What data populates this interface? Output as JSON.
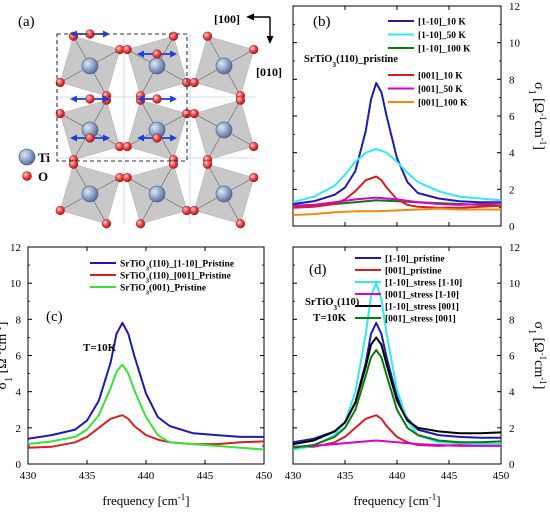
{
  "panel_a": {
    "label": "(a)",
    "dir_100": "[100]",
    "dir_010": "[010]",
    "legend_ti": "Ti",
    "legend_o": "O"
  },
  "xlabel": "frequency [cm",
  "xlabel_sup": "-1",
  "xlabel_close": "]",
  "ylabel_main": "σ",
  "ylabel_sub": "1",
  "ylabel_units": " [Ω",
  "ylabel_sup1": "-1",
  "ylabel_mid": "cm",
  "ylabel_sup2": "-1",
  "ylabel_close": "]",
  "chart_data": [
    {
      "id": "b",
      "type": "line",
      "panel_label": "(b)",
      "annotation": "SrTiO3(110)_pristine",
      "annotation_parts": [
        "SrTiO",
        "3",
        "(110)_pristine"
      ],
      "xlim": [
        430,
        450
      ],
      "ylim": [
        0,
        12
      ],
      "yticks": [
        0,
        2,
        4,
        6,
        8,
        10,
        12
      ],
      "xticks": [],
      "yaxis_side": "right",
      "legend_placement": "right",
      "legend_groups": [
        [
          0,
          1,
          2
        ],
        [
          3,
          4,
          5
        ]
      ],
      "series": [
        {
          "name": "[1-10]_10 K",
          "color": "#1c1ca8",
          "x": [
            430,
            432,
            434,
            435,
            436,
            437,
            437.5,
            438,
            438.5,
            439,
            440,
            441,
            442,
            444,
            446,
            448,
            450
          ],
          "y": [
            1.2,
            1.35,
            1.7,
            2.1,
            3.0,
            5.2,
            6.9,
            7.8,
            7.3,
            6.0,
            3.7,
            2.4,
            1.8,
            1.5,
            1.35,
            1.3,
            1.3
          ]
        },
        {
          "name": "[1-10]_50 K",
          "color": "#33e8ee",
          "x": [
            430,
            432,
            434,
            435,
            436,
            437,
            438,
            439,
            440,
            441,
            442,
            444,
            446,
            448,
            450
          ],
          "y": [
            1.3,
            1.6,
            2.2,
            2.8,
            3.5,
            4.0,
            4.2,
            4.0,
            3.5,
            2.9,
            2.4,
            1.9,
            1.6,
            1.5,
            1.4
          ]
        },
        {
          "name": "[1-10]_100 K",
          "color": "#0a7a0a",
          "x": [
            430,
            432,
            434,
            436,
            438,
            440,
            442,
            444,
            446,
            448,
            450
          ],
          "y": [
            1.1,
            1.15,
            1.2,
            1.3,
            1.4,
            1.35,
            1.3,
            1.25,
            1.2,
            1.15,
            1.1
          ]
        },
        {
          "name": "[001]_10 K",
          "color": "#d42020",
          "x": [
            430,
            432,
            434,
            435,
            436,
            437,
            438,
            438.5,
            439,
            440,
            441,
            442,
            444,
            446,
            448,
            450
          ],
          "y": [
            1.0,
            1.05,
            1.2,
            1.45,
            1.9,
            2.5,
            2.7,
            2.5,
            2.1,
            1.45,
            1.15,
            1.05,
            1.0,
            1.0,
            1.05,
            1.1
          ]
        },
        {
          "name": "[001]_50 K",
          "color": "#d400d4",
          "x": [
            430,
            432,
            434,
            436,
            438,
            440,
            442,
            444,
            446,
            448,
            450
          ],
          "y": [
            1.1,
            1.15,
            1.3,
            1.45,
            1.55,
            1.45,
            1.3,
            1.2,
            1.15,
            1.2,
            1.25
          ]
        },
        {
          "name": "[001]_100 K",
          "color": "#f08a10",
          "x": [
            430,
            432,
            434,
            436,
            438,
            440,
            442,
            444,
            446,
            448,
            450
          ],
          "y": [
            0.6,
            0.65,
            0.75,
            0.8,
            0.8,
            0.85,
            0.9,
            0.95,
            0.9,
            0.9,
            0.9
          ]
        }
      ]
    },
    {
      "id": "c",
      "type": "line",
      "panel_label": "(c)",
      "annotation": "T=10K",
      "annotation_parts": [
        "T=10K"
      ],
      "xlim": [
        430,
        450
      ],
      "ylim": [
        0,
        12
      ],
      "yticks": [
        0,
        2,
        4,
        6,
        8,
        10,
        12
      ],
      "xticks": [
        430,
        435,
        440,
        445,
        450
      ],
      "yaxis_side": "left",
      "legend_placement": "top",
      "legend_groups": [
        [
          0,
          1,
          2
        ]
      ],
      "series": [
        {
          "name": "SrTiO3(110)_[1-10]_Pristine",
          "name_parts": [
            "SrTiO",
            "3",
            "(110)_[1-10]_Pristine"
          ],
          "color": "#1c1ca8",
          "x": [
            430,
            432,
            434,
            435,
            436,
            437,
            437.5,
            438,
            438.5,
            439,
            440,
            441,
            442,
            444,
            446,
            448,
            450
          ],
          "y": [
            1.4,
            1.6,
            1.9,
            2.4,
            3.5,
            5.6,
            7.2,
            7.8,
            7.2,
            6.0,
            3.9,
            2.6,
            2.1,
            1.7,
            1.6,
            1.5,
            1.5
          ]
        },
        {
          "name": "SrTiO3(110)_[001]_Pristine",
          "name_parts": [
            "SrTiO",
            "3",
            "(110)_[001]_Pristine"
          ],
          "color": "#d42020",
          "x": [
            430,
            432,
            434,
            435,
            436,
            437,
            438,
            438.5,
            439,
            440,
            441,
            442,
            444,
            446,
            448,
            450
          ],
          "y": [
            0.9,
            0.95,
            1.2,
            1.5,
            2.0,
            2.5,
            2.7,
            2.5,
            2.1,
            1.6,
            1.35,
            1.2,
            1.1,
            1.1,
            1.2,
            1.25
          ]
        },
        {
          "name": "SrTiO3(001)_Pristine",
          "name_parts": [
            "SrTiO",
            "3",
            "(001)_Pristine"
          ],
          "color": "#3ce03c",
          "x": [
            430,
            432,
            434,
            435,
            436,
            437,
            437.5,
            438,
            438.5,
            439,
            440,
            441,
            442,
            444,
            446,
            448,
            450
          ],
          "y": [
            1.1,
            1.25,
            1.5,
            1.9,
            2.7,
            4.2,
            5.1,
            5.5,
            5.0,
            4.1,
            2.6,
            1.6,
            1.2,
            1.1,
            1.0,
            0.9,
            0.8
          ]
        }
      ]
    },
    {
      "id": "d",
      "type": "line",
      "panel_label": "(d)",
      "annotation": "SrTiO3(110) T=10K",
      "annotation_parts": [
        "SrTiO",
        "3",
        "(110)",
        "T=10K"
      ],
      "xlim": [
        430,
        450
      ],
      "ylim": [
        0,
        12
      ],
      "yticks": [
        0,
        2,
        4,
        6,
        8,
        10,
        12
      ],
      "xticks": [
        430,
        435,
        440,
        445,
        450
      ],
      "yaxis_side": "right",
      "legend_placement": "top",
      "legend_groups": [
        [
          0,
          1,
          2,
          3,
          4,
          5
        ]
      ],
      "series": [
        {
          "name": "[1-10]_pristine",
          "color": "#1c1ca8",
          "x": [
            430,
            432,
            434,
            435,
            436,
            437,
            437.5,
            438,
            438.5,
            439,
            440,
            441,
            442,
            444,
            446,
            448,
            450
          ],
          "y": [
            1.2,
            1.4,
            1.8,
            2.3,
            3.4,
            5.6,
            7.2,
            7.8,
            7.2,
            5.9,
            3.7,
            2.5,
            1.9,
            1.6,
            1.5,
            1.45,
            1.45
          ]
        },
        {
          "name": "[001]_pristine",
          "color": "#d42020",
          "x": [
            430,
            432,
            434,
            435,
            436,
            437,
            438,
            438.5,
            439,
            440,
            441,
            442,
            444,
            446,
            448,
            450
          ],
          "y": [
            0.9,
            0.95,
            1.2,
            1.5,
            2.0,
            2.5,
            2.7,
            2.5,
            2.1,
            1.5,
            1.2,
            1.05,
            1.0,
            1.05,
            1.1,
            1.1
          ]
        },
        {
          "name": "[1-10]_stress [1-10]",
          "color": "#33e8ee",
          "x": [
            430,
            432,
            434,
            435,
            436,
            437,
            437.5,
            438,
            438.5,
            439,
            440,
            441,
            442,
            444,
            446,
            448,
            450
          ],
          "y": [
            0.8,
            1.0,
            1.6,
            2.3,
            4.0,
            7.2,
            9.3,
            10.0,
            9.1,
            7.2,
            4.1,
            2.4,
            1.6,
            1.2,
            1.15,
            1.1,
            1.1
          ]
        },
        {
          "name": "[001]_stress [1-10]",
          "color": "#d400d4",
          "x": [
            430,
            432,
            434,
            436,
            438,
            440,
            442,
            444,
            446,
            448,
            450
          ],
          "y": [
            0.95,
            1.0,
            1.1,
            1.2,
            1.3,
            1.2,
            1.1,
            1.05,
            1.0,
            1.0,
            1.0
          ]
        },
        {
          "name": "[1-10]_stress [001]",
          "color": "#000000",
          "x": [
            430,
            432,
            434,
            435,
            436,
            437,
            437.5,
            438,
            438.5,
            439,
            440,
            441,
            442,
            444,
            446,
            448,
            450
          ],
          "y": [
            1.1,
            1.3,
            1.8,
            2.3,
            3.4,
            5.4,
            6.6,
            7.0,
            6.6,
            5.5,
            3.5,
            2.4,
            2.0,
            1.8,
            1.7,
            1.7,
            1.75
          ]
        },
        {
          "name": "[001]_stress [001]",
          "color": "#0a7a0a",
          "x": [
            430,
            432,
            434,
            435,
            436,
            437,
            437.5,
            438,
            438.5,
            439,
            440,
            441,
            442,
            444,
            446,
            448,
            450
          ],
          "y": [
            0.9,
            1.05,
            1.5,
            2.0,
            3.0,
            4.9,
            5.9,
            6.3,
            5.9,
            4.9,
            3.0,
            2.0,
            1.6,
            1.3,
            1.2,
            1.2,
            1.25
          ]
        }
      ]
    }
  ]
}
